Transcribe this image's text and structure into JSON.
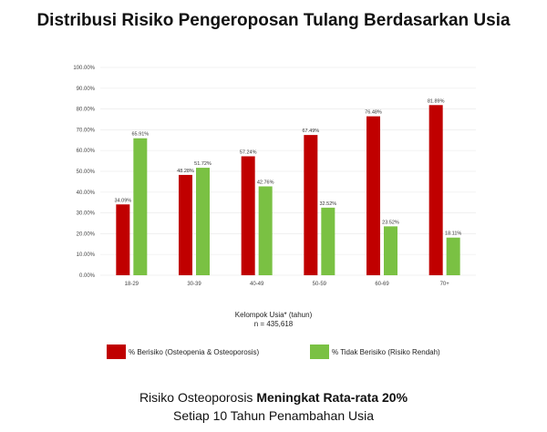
{
  "title": "Distribusi Risiko Pengeroposan Tulang Berdasarkan Usia",
  "chart_data": {
    "type": "bar",
    "title": "Distribusi Risiko Pengeroposan Tulang Berdasarkan Usia",
    "xlabel": "Kelompok Usia* (tahun)",
    "note": "n = 435,618",
    "categories": [
      "18-29",
      "30-39",
      "40-49",
      "50-59",
      "60-69",
      "70+"
    ],
    "series": [
      {
        "name": "% Berisiko (Osteopenia & Osteoporosis)",
        "color": "#c00000",
        "values": [
          34.09,
          48.28,
          57.24,
          67.49,
          76.48,
          81.89
        ],
        "labels": [
          "34.09%",
          "48.28%",
          "57.24%",
          "67.49%",
          "76.48%",
          "81.89%"
        ]
      },
      {
        "name": "% Tidak Berisiko (Risiko Rendah)",
        "color": "#7ac143",
        "values": [
          65.91,
          51.72,
          42.76,
          32.52,
          23.52,
          18.11
        ],
        "labels": [
          "65.91%",
          "51.72%",
          "42.76%",
          "32.52%",
          "23.52%",
          "18.11%"
        ]
      }
    ],
    "ylim": [
      0,
      100
    ],
    "yticks": [
      "0.00%",
      "10.00%",
      "20.00%",
      "30.00%",
      "40.00%",
      "50.00%",
      "60.00%",
      "70.00%",
      "80.00%",
      "90.00%",
      "100.00%"
    ],
    "grid": true,
    "legend": "bottom"
  },
  "footer": {
    "line1_prefix": "Risiko Osteoporosis ",
    "line1_bold": "Meningkat Rata-rata 20%",
    "line2": "Setiap 10 Tahun Penambahan Usia"
  }
}
